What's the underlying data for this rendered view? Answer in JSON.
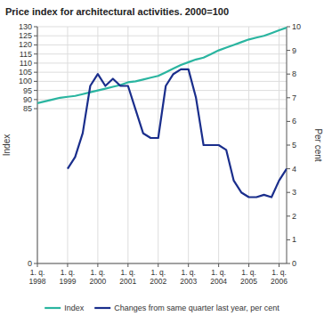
{
  "chart_data": {
    "type": "line",
    "title": "Price index for architectural activities. 2000=100",
    "y_label": "Index",
    "y2_label": "Per cent",
    "categories": [
      "1. q.\n1998",
      null,
      null,
      null,
      "1. q.\n1999",
      null,
      null,
      null,
      "1. q.\n2000",
      null,
      null,
      null,
      "1. q.\n2001",
      null,
      null,
      null,
      "1. q.\n2002",
      null,
      null,
      null,
      "1. q.\n2003",
      null,
      null,
      null,
      "1. q.\n2004",
      null,
      null,
      null,
      "1. q.\n2005",
      null,
      null,
      null,
      "1. q.\n2006",
      null
    ],
    "series": [
      {
        "name": "Index",
        "color": "#2ab5a0",
        "values": [
          88,
          89,
          90,
          91,
          91.5,
          92,
          93,
          94,
          95,
          96,
          97,
          98,
          99.5,
          100,
          101,
          102,
          103,
          105,
          107,
          109,
          110.5,
          112,
          113,
          115,
          117,
          118.5,
          120,
          121.5,
          123,
          124,
          125,
          126.5,
          128,
          129.5
        ]
      },
      {
        "name": "Changes from same quarter last year, per cent",
        "color": "#1a2e8c",
        "axis": "y2",
        "values": [
          null,
          null,
          null,
          null,
          4.0,
          4.5,
          5.5,
          7.5,
          8.0,
          7.5,
          7.8,
          7.5,
          7.5,
          6.5,
          5.5,
          5.3,
          5.3,
          7.5,
          8.0,
          8.2,
          8.2,
          7.0,
          5.0,
          5.0,
          5.0,
          4.8,
          3.5,
          3.0,
          2.8,
          2.8,
          2.9,
          2.8,
          3.5,
          4.0
        ]
      }
    ],
    "ylim": [
      0,
      130
    ],
    "yticks": [
      0,
      85,
      90,
      95,
      100,
      105,
      110,
      115,
      120,
      125,
      130
    ],
    "y2lim": [
      0,
      10
    ],
    "y2ticks": [
      0,
      1,
      2,
      3,
      4,
      5,
      6,
      7,
      8,
      9,
      10
    ],
    "grid": true,
    "legend": "bottom"
  }
}
